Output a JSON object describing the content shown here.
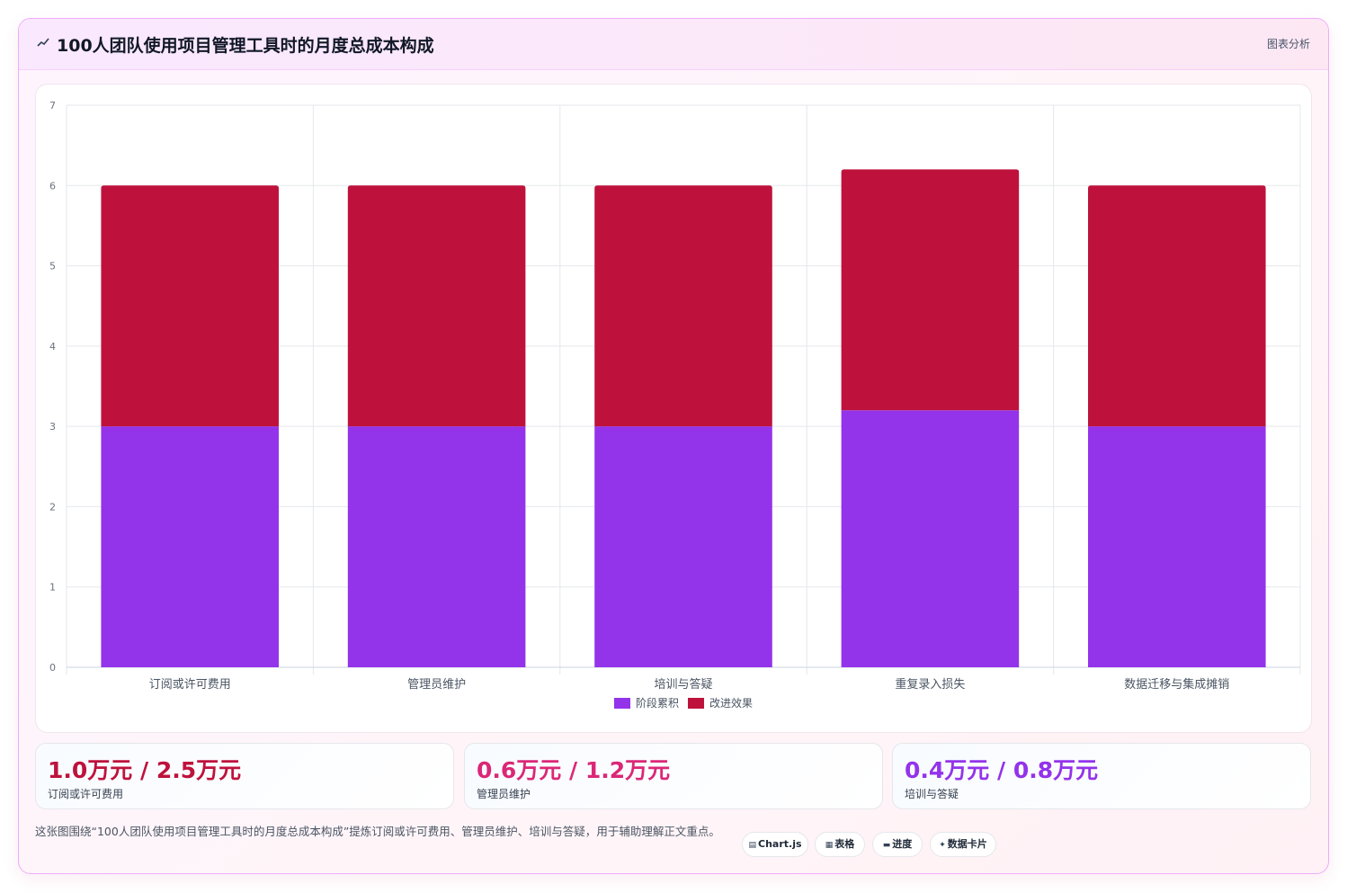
{
  "header": {
    "title": "100人团队使用项目管理工具时的月度总成本构成",
    "tag": "图表分析"
  },
  "chart_data": {
    "type": "bar",
    "stacked": true,
    "categories": [
      "订阅或许可费用",
      "管理员维护",
      "培训与答疑",
      "重复录入损失",
      "数据迁移与集成摊销"
    ],
    "series": [
      {
        "name": "阶段累积",
        "values": [
          3,
          3,
          3,
          3.2,
          3
        ],
        "color": "#9333ea"
      },
      {
        "name": "改进效果",
        "values": [
          3,
          3,
          3,
          3,
          3
        ],
        "color": "#be123c"
      }
    ],
    "ylim": [
      0,
      7
    ],
    "yticks": [
      "0",
      "1",
      "2",
      "3",
      "4",
      "5",
      "6",
      "7"
    ],
    "grid": true,
    "legend_position": "bottom"
  },
  "stats": [
    {
      "value": "1.0万元 / 2.5万元",
      "label": "订阅或许可费用",
      "color": "#be123c"
    },
    {
      "value": "0.6万元 / 1.2万元",
      "label": "管理员维护",
      "color": "#db2777"
    },
    {
      "value": "0.4万元 / 0.8万元",
      "label": "培训与答疑",
      "color": "#9333ea"
    }
  ],
  "footer": {
    "description": "这张图围绕“100人团队使用项目管理工具时的月度总成本构成”提炼订阅或许可费用、管理员维护、培训与答疑，用于辅助理解正文重点。",
    "chips": [
      {
        "icon": "▤",
        "label": "Chart.js"
      },
      {
        "icon": "▦",
        "label": "表格"
      },
      {
        "icon": "▬",
        "label": "进度"
      },
      {
        "icon": "✦",
        "label": "数据卡片"
      }
    ]
  }
}
